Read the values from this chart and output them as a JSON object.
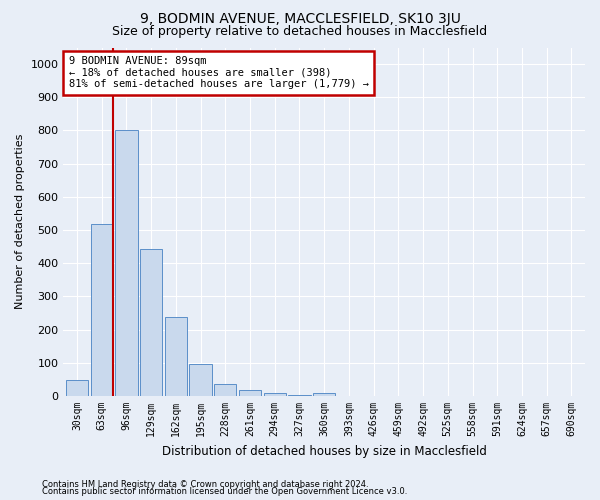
{
  "title1": "9, BODMIN AVENUE, MACCLESFIELD, SK10 3JU",
  "title2": "Size of property relative to detached houses in Macclesfield",
  "xlabel": "Distribution of detached houses by size in Macclesfield",
  "ylabel": "Number of detached properties",
  "bar_labels": [
    "30sqm",
    "63sqm",
    "96sqm",
    "129sqm",
    "162sqm",
    "195sqm",
    "228sqm",
    "261sqm",
    "294sqm",
    "327sqm",
    "360sqm",
    "393sqm",
    "426sqm",
    "459sqm",
    "492sqm",
    "525sqm",
    "558sqm",
    "591sqm",
    "624sqm",
    "657sqm",
    "690sqm"
  ],
  "bar_values": [
    47,
    518,
    800,
    443,
    238,
    97,
    35,
    18,
    10,
    3,
    8,
    0,
    0,
    0,
    0,
    0,
    0,
    0,
    0,
    0,
    0
  ],
  "bar_color": "#c9d9ed",
  "bar_edge_color": "#5b8fc9",
  "vline_color": "#c00000",
  "annotation_text": "9 BODMIN AVENUE: 89sqm\n← 18% of detached houses are smaller (398)\n81% of semi-detached houses are larger (1,779) →",
  "annotation_box_color": "#c00000",
  "ylim": [
    0,
    1050
  ],
  "yticks": [
    0,
    100,
    200,
    300,
    400,
    500,
    600,
    700,
    800,
    900,
    1000
  ],
  "footnote1": "Contains HM Land Registry data © Crown copyright and database right 2024.",
  "footnote2": "Contains public sector information licensed under the Open Government Licence v3.0.",
  "bg_color": "#e8eef7",
  "plot_bg_color": "#e8eef7",
  "title1_fontsize": 10,
  "title2_fontsize": 9
}
